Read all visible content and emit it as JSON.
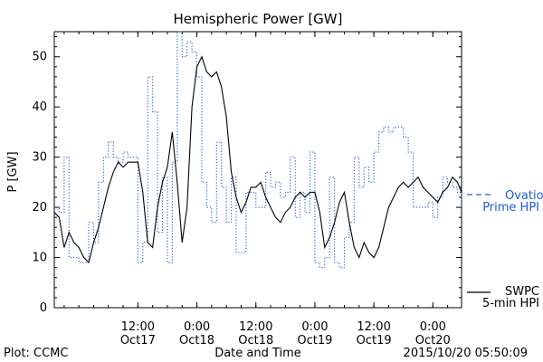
{
  "chart_data": {
    "type": "line",
    "title": "Hemispheric Power [GW]",
    "xlabel": "Date and Time",
    "ylabel": "P [GW]",
    "ylim": [
      0,
      55
    ],
    "xlim": [
      "2015-10-16T19:00",
      "2015-10-20T05:50"
    ],
    "y_ticks": [
      "0",
      "10",
      "20",
      "30",
      "40",
      "50"
    ],
    "x_ticks": [
      {
        "x": "2015-10-17T12:00",
        "line1": "12:00",
        "line2": "Oct17"
      },
      {
        "x": "2015-10-18T00:00",
        "line1": "0:00",
        "line2": "Oct18"
      },
      {
        "x": "2015-10-18T12:00",
        "line1": "12:00",
        "line2": "Oct18"
      },
      {
        "x": "2015-10-19T00:00",
        "line1": "0:00",
        "line2": "Oct19"
      },
      {
        "x": "2015-10-19T12:00",
        "line1": "12:00",
        "line2": "Oct19"
      },
      {
        "x": "2015-10-20T00:00",
        "line1": "0:00",
        "line2": "Oct20"
      }
    ],
    "grid": true,
    "legend": "right",
    "series": [
      {
        "name": "Ovation Prime HPI",
        "legend_lines": [
          "Ovation",
          "Prime HPI"
        ],
        "style": "dotted-step",
        "color": "#1f5bd6",
        "x": [
          "2015-10-16T19:00",
          "2015-10-16T20:00",
          "2015-10-16T21:00",
          "2015-10-16T22:00",
          "2015-10-16T23:00",
          "2015-10-17T00:00",
          "2015-10-17T01:00",
          "2015-10-17T02:00",
          "2015-10-17T03:00",
          "2015-10-17T04:00",
          "2015-10-17T05:00",
          "2015-10-17T06:00",
          "2015-10-17T07:00",
          "2015-10-17T08:00",
          "2015-10-17T09:00",
          "2015-10-17T10:00",
          "2015-10-17T11:00",
          "2015-10-17T12:00",
          "2015-10-17T13:00",
          "2015-10-17T14:00",
          "2015-10-17T15:00",
          "2015-10-17T16:00",
          "2015-10-17T17:00",
          "2015-10-17T18:00",
          "2015-10-17T19:00",
          "2015-10-17T20:00",
          "2015-10-17T21:00",
          "2015-10-17T22:00",
          "2015-10-17T23:00",
          "2015-10-18T00:00",
          "2015-10-18T01:00",
          "2015-10-18T02:00",
          "2015-10-18T03:00",
          "2015-10-18T04:00",
          "2015-10-18T05:00",
          "2015-10-18T06:00",
          "2015-10-18T07:00",
          "2015-10-18T08:00",
          "2015-10-18T09:00",
          "2015-10-18T10:00",
          "2015-10-18T11:00",
          "2015-10-18T12:00",
          "2015-10-18T13:00",
          "2015-10-18T14:00",
          "2015-10-18T15:00",
          "2015-10-18T16:00",
          "2015-10-18T17:00",
          "2015-10-18T18:00",
          "2015-10-18T19:00",
          "2015-10-18T20:00",
          "2015-10-18T21:00",
          "2015-10-18T22:00",
          "2015-10-18T23:00",
          "2015-10-19T00:00",
          "2015-10-19T01:00",
          "2015-10-19T02:00",
          "2015-10-19T03:00",
          "2015-10-19T04:00",
          "2015-10-19T05:00",
          "2015-10-19T06:00",
          "2015-10-19T07:00",
          "2015-10-19T08:00",
          "2015-10-19T09:00",
          "2015-10-19T10:00",
          "2015-10-19T11:00",
          "2015-10-19T12:00",
          "2015-10-19T13:00",
          "2015-10-19T14:00",
          "2015-10-19T15:00",
          "2015-10-19T16:00",
          "2015-10-19T17:00",
          "2015-10-19T18:00",
          "2015-10-19T19:00",
          "2015-10-19T20:00",
          "2015-10-19T21:00",
          "2015-10-19T22:00",
          "2015-10-19T23:00",
          "2015-10-20T00:00",
          "2015-10-20T01:00",
          "2015-10-20T02:00",
          "2015-10-20T03:00",
          "2015-10-20T04:00",
          "2015-10-20T05:00",
          "2015-10-20T05:50"
        ],
        "y": [
          20,
          19,
          30,
          10,
          10,
          9,
          9,
          17,
          13,
          25,
          30,
          33,
          30,
          29,
          31,
          30,
          30,
          9,
          13,
          46,
          39,
          15,
          26,
          9,
          29,
          55,
          50,
          53,
          51,
          46,
          25,
          20,
          17,
          33,
          24,
          17,
          26,
          11,
          11,
          23,
          23,
          20,
          20,
          27,
          24,
          25,
          22,
          23,
          30,
          18,
          23,
          19,
          31,
          9,
          8,
          10,
          26,
          9,
          8,
          14,
          17,
          30,
          24,
          28,
          25,
          31,
          35,
          36,
          35,
          36,
          36,
          34,
          31,
          20,
          20,
          20,
          21,
          18,
          22,
          26,
          25,
          24,
          23,
          20
        ],
        "values_note": ""
      },
      {
        "name": "SWPC 5-min HPI",
        "legend_lines": [
          "SWPC",
          "5-min HPI"
        ],
        "style": "solid",
        "color": "#000000",
        "x": [
          "2015-10-16T19:00",
          "2015-10-16T20:00",
          "2015-10-16T21:00",
          "2015-10-16T22:00",
          "2015-10-16T23:00",
          "2015-10-17T00:00",
          "2015-10-17T01:00",
          "2015-10-17T02:00",
          "2015-10-17T03:00",
          "2015-10-17T04:00",
          "2015-10-17T05:00",
          "2015-10-17T06:00",
          "2015-10-17T07:00",
          "2015-10-17T08:00",
          "2015-10-17T09:00",
          "2015-10-17T10:00",
          "2015-10-17T11:00",
          "2015-10-17T12:00",
          "2015-10-17T13:00",
          "2015-10-17T14:00",
          "2015-10-17T15:00",
          "2015-10-17T16:00",
          "2015-10-17T17:00",
          "2015-10-17T18:00",
          "2015-10-17T19:00",
          "2015-10-17T20:00",
          "2015-10-17T21:00",
          "2015-10-17T22:00",
          "2015-10-17T23:00",
          "2015-10-18T00:00",
          "2015-10-18T01:00",
          "2015-10-18T02:00",
          "2015-10-18T03:00",
          "2015-10-18T04:00",
          "2015-10-18T05:00",
          "2015-10-18T06:00",
          "2015-10-18T07:00",
          "2015-10-18T08:00",
          "2015-10-18T09:00",
          "2015-10-18T10:00",
          "2015-10-18T11:00",
          "2015-10-18T12:00",
          "2015-10-18T13:00",
          "2015-10-18T14:00",
          "2015-10-18T15:00",
          "2015-10-18T16:00",
          "2015-10-18T17:00",
          "2015-10-18T18:00",
          "2015-10-18T19:00",
          "2015-10-18T20:00",
          "2015-10-18T21:00",
          "2015-10-18T22:00",
          "2015-10-18T23:00",
          "2015-10-19T00:00",
          "2015-10-19T01:00",
          "2015-10-19T02:00",
          "2015-10-19T03:00",
          "2015-10-19T04:00",
          "2015-10-19T05:00",
          "2015-10-19T06:00",
          "2015-10-19T07:00",
          "2015-10-19T08:00",
          "2015-10-19T09:00",
          "2015-10-19T10:00",
          "2015-10-19T11:00",
          "2015-10-19T12:00",
          "2015-10-19T13:00",
          "2015-10-19T14:00",
          "2015-10-19T15:00",
          "2015-10-19T16:00",
          "2015-10-19T17:00",
          "2015-10-19T18:00",
          "2015-10-19T19:00",
          "2015-10-19T20:00",
          "2015-10-19T21:00",
          "2015-10-19T22:00",
          "2015-10-19T23:00",
          "2015-10-20T00:00",
          "2015-10-20T01:00",
          "2015-10-20T02:00",
          "2015-10-20T03:00",
          "2015-10-20T04:00",
          "2015-10-20T05:00",
          "2015-10-20T05:50"
        ],
        "y": [
          19,
          18,
          12,
          15,
          13,
          12,
          10,
          9,
          13,
          16,
          20,
          24,
          27,
          29,
          28,
          29,
          29,
          29,
          23,
          13,
          12,
          20,
          25,
          28,
          35,
          25,
          13,
          20,
          40,
          48,
          50,
          47,
          46,
          47,
          44,
          38,
          27,
          22,
          19,
          21,
          24,
          24,
          25,
          22,
          20,
          18,
          17,
          19,
          20,
          22,
          23,
          22,
          23,
          23,
          19,
          12,
          14,
          17,
          21,
          23,
          17,
          12,
          10,
          13,
          11,
          10,
          12,
          16,
          20,
          22,
          24,
          25,
          24,
          25,
          26,
          24,
          23,
          22,
          21,
          23,
          24,
          26,
          25,
          23
        ]
      }
    ]
  },
  "footer": {
    "left": "Plot: CCMC",
    "right": "2015/10/20 05:50:09"
  }
}
